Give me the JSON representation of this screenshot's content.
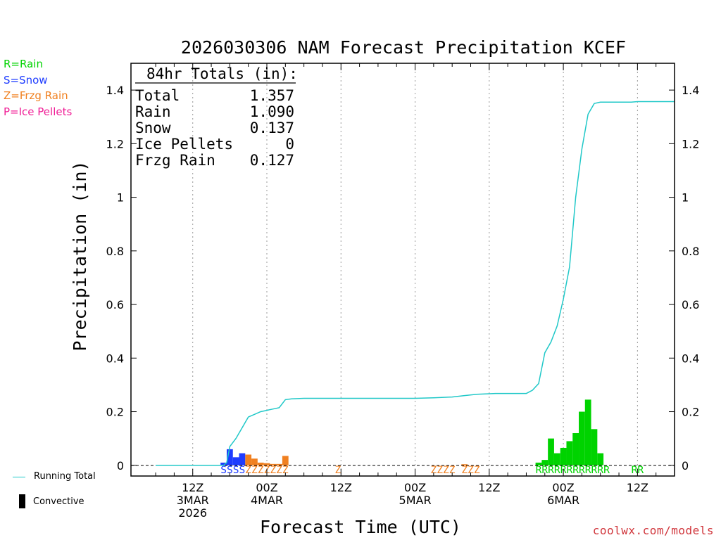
{
  "chart_data": {
    "type": "bar+line",
    "title": "2026030306 NAM Forecast Precipitation KCEF",
    "xlabel": "Forecast Time (UTC)",
    "ylabel": "Precipitation (in)",
    "ylim": [
      -0.04,
      1.5
    ],
    "xlim_hours": [
      -4,
      84
    ],
    "y_ticks": [
      {
        "value": 0,
        "label": "0"
      },
      {
        "value": 0.2,
        "label": "0.2"
      },
      {
        "value": 0.4,
        "label": "0.4"
      },
      {
        "value": 0.6,
        "label": "0.6"
      },
      {
        "value": 0.8,
        "label": "0.8"
      },
      {
        "value": 1.0,
        "label": "1"
      },
      {
        "value": 1.2,
        "label": "1.2"
      },
      {
        "value": 1.4,
        "label": "1.4"
      }
    ],
    "x_ticks": [
      {
        "hour": 6,
        "lines": [
          "12Z",
          "3MAR",
          "2026"
        ]
      },
      {
        "hour": 18,
        "lines": [
          "00Z",
          "4MAR"
        ]
      },
      {
        "hour": 30,
        "lines": [
          "12Z"
        ]
      },
      {
        "hour": 42,
        "lines": [
          "00Z",
          "5MAR"
        ]
      },
      {
        "hour": 54,
        "lines": [
          "12Z"
        ]
      },
      {
        "hour": 66,
        "lines": [
          "00Z",
          "6MAR"
        ]
      },
      {
        "hour": 78,
        "lines": [
          "12Z"
        ]
      }
    ],
    "bars": [
      {
        "hour": 11,
        "value": 0.01,
        "type": "snow"
      },
      {
        "hour": 12,
        "value": 0.06,
        "type": "snow"
      },
      {
        "hour": 13,
        "value": 0.03,
        "type": "snow"
      },
      {
        "hour": 14,
        "value": 0.045,
        "type": "snow"
      },
      {
        "hour": 15,
        "value": 0.04,
        "type": "frzg"
      },
      {
        "hour": 16,
        "value": 0.025,
        "type": "frzg"
      },
      {
        "hour": 17,
        "value": 0.01,
        "type": "frzg"
      },
      {
        "hour": 18,
        "value": 0.008,
        "type": "frzg"
      },
      {
        "hour": 19,
        "value": 0.005,
        "type": "frzg"
      },
      {
        "hour": 20,
        "value": 0.005,
        "type": "frzg"
      },
      {
        "hour": 21,
        "value": 0.035,
        "type": "frzg"
      },
      {
        "hour": 50,
        "value": 0.004,
        "type": "frzg"
      },
      {
        "hour": 62,
        "value": 0.01,
        "type": "rain"
      },
      {
        "hour": 63,
        "value": 0.02,
        "type": "rain"
      },
      {
        "hour": 64,
        "value": 0.1,
        "type": "rain"
      },
      {
        "hour": 65,
        "value": 0.045,
        "type": "rain"
      },
      {
        "hour": 66,
        "value": 0.065,
        "type": "rain"
      },
      {
        "hour": 67,
        "value": 0.09,
        "type": "rain"
      },
      {
        "hour": 68,
        "value": 0.12,
        "type": "rain"
      },
      {
        "hour": 69,
        "value": 0.2,
        "type": "rain"
      },
      {
        "hour": 70,
        "value": 0.245,
        "type": "rain"
      },
      {
        "hour": 71,
        "value": 0.135,
        "type": "rain"
      },
      {
        "hour": 72,
        "value": 0.045,
        "type": "rain"
      }
    ],
    "running_total": [
      [
        0,
        0
      ],
      [
        11,
        0
      ],
      [
        11.5,
        0.01
      ],
      [
        12,
        0.07
      ],
      [
        13,
        0.1
      ],
      [
        14,
        0.14
      ],
      [
        15,
        0.18
      ],
      [
        16,
        0.19
      ],
      [
        17,
        0.2
      ],
      [
        18,
        0.205
      ],
      [
        19,
        0.21
      ],
      [
        20,
        0.215
      ],
      [
        21,
        0.245
      ],
      [
        22,
        0.248
      ],
      [
        24,
        0.25
      ],
      [
        42,
        0.25
      ],
      [
        45,
        0.252
      ],
      [
        48,
        0.255
      ],
      [
        50,
        0.26
      ],
      [
        52,
        0.265
      ],
      [
        55,
        0.268
      ],
      [
        60,
        0.268
      ],
      [
        61,
        0.28
      ],
      [
        62,
        0.305
      ],
      [
        63,
        0.42
      ],
      [
        64,
        0.46
      ],
      [
        65,
        0.52
      ],
      [
        66,
        0.62
      ],
      [
        67,
        0.74
      ],
      [
        68,
        1.0
      ],
      [
        69,
        1.18
      ],
      [
        70,
        1.31
      ],
      [
        71,
        1.35
      ],
      [
        72,
        1.355
      ],
      [
        77,
        1.355
      ],
      [
        78,
        1.357
      ],
      [
        84,
        1.357
      ]
    ],
    "ptype_markers": [
      {
        "start": 11,
        "text": "SSSS",
        "type": "snow"
      },
      {
        "start": 15,
        "text": "ZZZZZZZ",
        "type": "frzg"
      },
      {
        "start": 29.5,
        "text": "Z",
        "type": "frzg"
      },
      {
        "start": 45,
        "text": "ZZZZ",
        "type": "frzg"
      },
      {
        "start": 50,
        "text": "ZZZ",
        "type": "frzg"
      },
      {
        "start": 62,
        "text": "RRRRRRRRRRRR",
        "type": "rain"
      },
      {
        "start": 77.5,
        "text": "RR",
        "type": "rain"
      }
    ],
    "totals_box": {
      "heading": "84hr Totals (in):",
      "rows": [
        {
          "label": "Total",
          "value": "1.357"
        },
        {
          "label": "Rain",
          "value": "1.090"
        },
        {
          "label": "Snow",
          "value": "0.137"
        },
        {
          "label": "Ice Pellets",
          "value": "0"
        },
        {
          "label": "Frzg Rain",
          "value": "0.127"
        }
      ]
    },
    "colors": {
      "rain": "#00d300",
      "snow": "#1e3cff",
      "frzg": "#f08020",
      "ice": "#f01e96",
      "running_total": "#20c8c8",
      "convective": "#000000"
    }
  },
  "ptype_legend": [
    {
      "text": "R=Rain",
      "color": "#00d300"
    },
    {
      "text": "S=Snow",
      "color": "#1e3cff"
    },
    {
      "text": "Z=Frzg Rain",
      "color": "#f08020"
    },
    {
      "text": "P=Ice Pellets",
      "color": "#f01e96"
    }
  ],
  "series_legend": {
    "running_total": "Running Total",
    "convective": "Convective"
  },
  "credit": "coolwx.com/models"
}
